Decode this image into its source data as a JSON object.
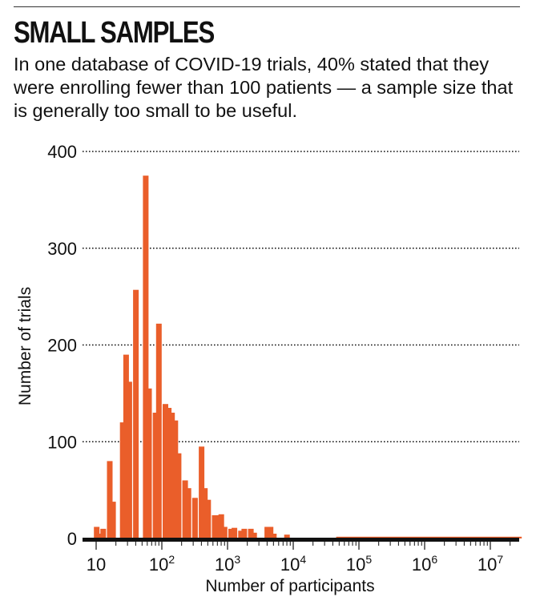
{
  "header": {
    "title": "SMALL SAMPLES",
    "subtitle": "In one database of COVID-19 trials, 40% stated that they were enrolling fewer than 100 patients — a sample size that is generally too small to be useful."
  },
  "colors": {
    "bar": "#EA5E2A",
    "axis": "#111111",
    "grid": "#111111",
    "text": "#111111"
  },
  "chart_data": {
    "type": "bar",
    "title": "",
    "xlabel": "Number of participants",
    "ylabel": "Number of trials",
    "x_scale": "log",
    "xlim": [
      10,
      30000000
    ],
    "ylim": [
      0,
      400
    ],
    "grid": "horizontal dotted",
    "x_ticks": [
      {
        "value": 10,
        "base": "10",
        "exp": ""
      },
      {
        "value": 100,
        "base": "10",
        "exp": "2"
      },
      {
        "value": 1000,
        "base": "10",
        "exp": "3"
      },
      {
        "value": 10000,
        "base": "10",
        "exp": "4"
      },
      {
        "value": 100000,
        "base": "10",
        "exp": "5"
      },
      {
        "value": 1000000,
        "base": "10",
        "exp": "6"
      },
      {
        "value": 10000000,
        "base": "10",
        "exp": "7"
      }
    ],
    "y_ticks": [
      {
        "value": 0,
        "label": "0"
      },
      {
        "value": 100,
        "label": "100"
      },
      {
        "value": 200,
        "label": "200"
      },
      {
        "value": 300,
        "label": "300"
      },
      {
        "value": 400,
        "label": "400"
      }
    ],
    "bin_width_log10": 0.1,
    "x": [
      10.2,
      11.4,
      12.8,
      14.4,
      16.1,
      18.1,
      20.2,
      22.7,
      25.4,
      28.6,
      32.0,
      35.9,
      40.3,
      45.2,
      50.7,
      56.9,
      63.8,
      71.6,
      80.3,
      90.1,
      101.1,
      113.4,
      127.2,
      142.7,
      160.1,
      179.6,
      201.5,
      226.1,
      253.7,
      284.7,
      319.4,
      358.4,
      402.1,
      451.2,
      506.2,
      568.0,
      637.3,
      715.1,
      802.3,
      900.3,
      1010.1,
      1133.3,
      1271.6,
      1426.7,
      1600.9,
      1796.2,
      2015.4,
      2261.2,
      2537.2,
      2846.8,
      3194.2,
      3583.9,
      4021.2,
      4511.9,
      5062.4,
      5680.1,
      6373.2,
      7150.9,
      8023.4,
      9002.4,
      10100.8,
      11333.3,
      12716.3,
      14267.9,
      16008.9,
      17962.3,
      20154.1,
      22613.2,
      25372.4,
      28468.3,
      31942.0,
      35839.5,
      40212.6,
      45119.4
    ],
    "values": [
      12,
      5,
      10,
      0,
      80,
      38,
      0,
      0,
      120,
      190,
      162,
      0,
      257,
      0,
      0,
      375,
      155,
      0,
      130,
      222,
      0,
      139,
      135,
      130,
      122,
      88,
      0,
      60,
      52,
      0,
      42,
      0,
      95,
      52,
      40,
      0,
      24,
      24,
      25,
      12,
      0,
      10,
      11,
      0,
      8,
      10,
      0,
      10,
      6,
      0,
      0,
      0,
      12,
      12,
      5,
      0,
      0,
      0,
      4,
      0,
      0,
      0,
      0,
      0,
      0,
      0,
      0,
      0,
      0,
      0,
      0,
      0,
      0,
      0
    ],
    "minor_values": [
      {
        "x_from": 45000,
        "x_to": 30000000,
        "value": 1
      }
    ]
  }
}
